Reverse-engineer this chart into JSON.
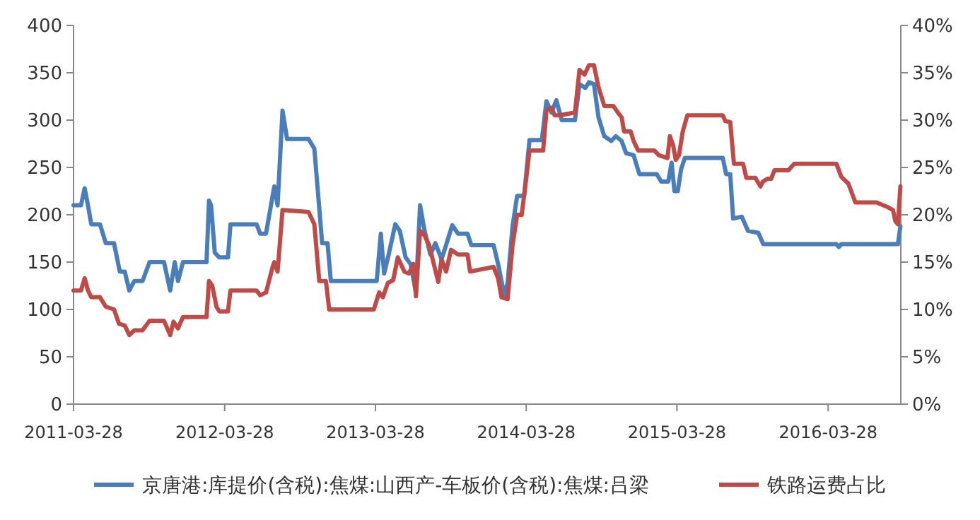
{
  "chart_data": {
    "type": "line",
    "xlim": [
      "2011-03-28",
      "2016-09-20"
    ],
    "xticks": [
      "2011-03-28",
      "2012-03-28",
      "2013-03-28",
      "2014-03-28",
      "2015-03-28",
      "2016-03-28"
    ],
    "ylim": [
      0,
      400
    ],
    "yticks": [
      0,
      50,
      100,
      150,
      200,
      250,
      300,
      350,
      400
    ],
    "y2lim": [
      0,
      40
    ],
    "y2ticks": [
      {
        "value": 0,
        "label": "0%"
      },
      {
        "value": 5,
        "label": "5%"
      },
      {
        "value": 10,
        "label": "10%"
      },
      {
        "value": 15,
        "label": "15%"
      },
      {
        "value": 20,
        "label": "20%"
      },
      {
        "value": 25,
        "label": "25%"
      },
      {
        "value": 30,
        "label": "30%"
      },
      {
        "value": 35,
        "label": "35%"
      },
      {
        "value": 40,
        "label": "40%"
      }
    ],
    "grid": false,
    "legend": "bottom",
    "marker": "none",
    "line_style": "solid",
    "series": [
      {
        "name": "京唐港:库提价(含税):焦煤:山西产-车板价(含税):焦煤:吕梁",
        "color": "#4a7ebb",
        "x": [
          "2011-03-28",
          "2011-04-15",
          "2011-04-24",
          "2011-05-02",
          "2011-05-10",
          "2011-05-31",
          "2011-06-14",
          "2011-07-04",
          "2011-07-18",
          "2011-07-30",
          "2011-08-10",
          "2011-08-22",
          "2011-09-11",
          "2011-09-28",
          "2011-11-02",
          "2011-11-17",
          "2011-11-28",
          "2011-12-06",
          "2011-12-18",
          "2012-02-13",
          "2012-02-19",
          "2012-02-24",
          "2012-03-04",
          "2012-03-15",
          "2012-04-05",
          "2012-04-11",
          "2012-06-13",
          "2012-06-22",
          "2012-07-06",
          "2012-07-26",
          "2012-08-03",
          "2012-08-15",
          "2012-08-26",
          "2012-10-17",
          "2012-10-31",
          "2012-11-19",
          "2012-12-02",
          "2012-12-10",
          "2013-03-31",
          "2013-04-10",
          "2013-04-18",
          "2013-04-29",
          "2013-05-15",
          "2013-05-26",
          "2013-06-09",
          "2013-06-21",
          "2013-07-04",
          "2013-07-14",
          "2013-07-25",
          "2013-08-08",
          "2013-08-20",
          "2013-09-04",
          "2013-09-15",
          "2013-09-30",
          "2013-10-14",
          "2013-11-06",
          "2013-11-15",
          "2014-01-08",
          "2014-01-19",
          "2014-02-03",
          "2014-02-11",
          "2014-02-23",
          "2014-03-06",
          "2014-03-23",
          "2014-04-05",
          "2014-05-05",
          "2014-05-16",
          "2014-05-28",
          "2014-06-09",
          "2014-06-22",
          "2014-07-24",
          "2014-08-04",
          "2014-08-18",
          "2014-08-27",
          "2014-09-08",
          "2014-09-19",
          "2014-10-03",
          "2014-10-20",
          "2014-10-31",
          "2014-11-14",
          "2014-11-25",
          "2014-12-13",
          "2014-12-27",
          "2015-02-07",
          "2015-02-18",
          "2015-03-07",
          "2015-03-15",
          "2015-03-22",
          "2015-03-30",
          "2015-04-07",
          "2015-04-16",
          "2015-07-17",
          "2015-07-25",
          "2015-08-04",
          "2015-08-11",
          "2015-09-01",
          "2015-09-16",
          "2015-10-11",
          "2015-10-23",
          "2016-04-17",
          "2016-04-23",
          "2016-04-29",
          "2016-09-13",
          "2016-09-19"
        ],
        "values": [
          210,
          210,
          228,
          210,
          190,
          190,
          170,
          170,
          140,
          140,
          120,
          130,
          130,
          150,
          150,
          120,
          150,
          130,
          150,
          150,
          215,
          210,
          160,
          155,
          155,
          190,
          190,
          180,
          180,
          230,
          210,
          310,
          280,
          280,
          270,
          170,
          170,
          130,
          130,
          180,
          138,
          158,
          190,
          183,
          155,
          148,
          118,
          210,
          183,
          158,
          170,
          153,
          168,
          189,
          180,
          180,
          168,
          168,
          148,
          115,
          128,
          188,
          220,
          220,
          279,
          279,
          320,
          308,
          321,
          300,
          300,
          338,
          334,
          340,
          338,
          303,
          283,
          278,
          283,
          278,
          265,
          263,
          243,
          243,
          235,
          235,
          255,
          225,
          225,
          248,
          260,
          260,
          243,
          243,
          196,
          198,
          183,
          181,
          169,
          169,
          166,
          169,
          169,
          188
        ]
      },
      {
        "name": "铁路运费占比",
        "color": "#be4b48",
        "axis": "y2",
        "x": [
          "2011-03-28",
          "2011-04-15",
          "2011-04-24",
          "2011-05-02",
          "2011-05-10",
          "2011-05-31",
          "2011-06-14",
          "2011-07-04",
          "2011-07-16",
          "2011-07-30",
          "2011-08-10",
          "2011-08-22",
          "2011-09-11",
          "2011-09-28",
          "2011-11-02",
          "2011-11-17",
          "2011-11-25",
          "2011-12-06",
          "2011-12-18",
          "2012-02-13",
          "2012-02-19",
          "2012-02-27",
          "2012-03-08",
          "2012-03-15",
          "2012-04-05",
          "2012-04-11",
          "2012-06-13",
          "2012-06-22",
          "2012-07-06",
          "2012-07-22",
          "2012-07-26",
          "2012-08-03",
          "2012-08-15",
          "2012-10-17",
          "2012-10-31",
          "2012-11-12",
          "2012-11-28",
          "2012-12-06",
          "2013-03-24",
          "2013-04-06",
          "2013-04-15",
          "2013-04-27",
          "2013-05-10",
          "2013-05-21",
          "2013-06-06",
          "2013-06-17",
          "2013-06-28",
          "2013-07-04",
          "2013-07-14",
          "2013-07-25",
          "2013-08-05",
          "2013-08-27",
          "2013-09-04",
          "2013-09-15",
          "2013-09-27",
          "2013-10-14",
          "2013-11-06",
          "2013-11-12",
          "2014-01-08",
          "2014-01-19",
          "2014-01-27",
          "2014-02-11",
          "2014-02-23",
          "2014-03-06",
          "2014-03-17",
          "2014-03-28",
          "2014-04-05",
          "2014-05-08",
          "2014-05-16",
          "2014-05-28",
          "2014-06-05",
          "2014-06-16",
          "2014-07-24",
          "2014-08-04",
          "2014-08-16",
          "2014-08-27",
          "2014-09-08",
          "2014-09-19",
          "2014-10-03",
          "2014-10-25",
          "2014-11-05",
          "2014-11-14",
          "2014-11-20",
          "2014-12-06",
          "2014-12-13",
          "2014-12-24",
          "2015-02-01",
          "2015-02-12",
          "2015-03-05",
          "2015-03-11",
          "2015-03-19",
          "2015-03-25",
          "2015-04-02",
          "2015-04-11",
          "2015-04-22",
          "2015-07-17",
          "2015-07-23",
          "2015-08-04",
          "2015-08-13",
          "2015-09-04",
          "2015-09-12",
          "2015-10-04",
          "2015-10-16",
          "2015-10-22",
          "2015-11-02",
          "2015-11-11",
          "2015-11-19",
          "2015-12-23",
          "2016-01-06",
          "2016-04-17",
          "2016-04-29",
          "2016-05-16",
          "2016-06-02",
          "2016-07-23",
          "2016-08-20",
          "2016-09-01",
          "2016-09-07",
          "2016-09-13",
          "2016-09-19"
        ],
        "values": [
          12,
          12,
          13.3,
          12,
          11.3,
          11.3,
          10.3,
          10,
          8.5,
          8.3,
          7.3,
          7.8,
          7.8,
          8.8,
          8.8,
          7.3,
          8.7,
          8,
          9.2,
          9.2,
          13,
          12.5,
          10.3,
          9.8,
          9.8,
          12,
          12,
          11.5,
          11.8,
          14.5,
          15,
          14,
          20.5,
          20.3,
          19,
          13,
          13,
          10,
          10,
          11.8,
          11.3,
          12.8,
          13.1,
          15.5,
          14,
          13.8,
          14.8,
          11.4,
          18.3,
          17.8,
          16.8,
          12.9,
          15.3,
          14,
          16.3,
          15.8,
          15.8,
          14,
          14.5,
          13.3,
          11.3,
          11.1,
          16.8,
          20,
          20,
          23.8,
          26.8,
          26.8,
          31,
          31.3,
          30.5,
          30.5,
          30.8,
          35.3,
          34.8,
          35.8,
          35.8,
          33.5,
          31.5,
          31.5,
          30.8,
          30.3,
          28.8,
          28.8,
          27.8,
          26.8,
          26.8,
          26.3,
          26,
          28.3,
          27.3,
          25.8,
          26.3,
          28.8,
          30.5,
          30.5,
          29.9,
          29.8,
          25.4,
          25.4,
          23.9,
          23.9,
          23,
          23.5,
          23.8,
          23.8,
          24.7,
          24.7,
          25.4,
          25.4,
          24,
          23.3,
          21.3,
          21.3,
          20.8,
          20.5,
          19.3,
          19,
          23
        ]
      }
    ]
  }
}
